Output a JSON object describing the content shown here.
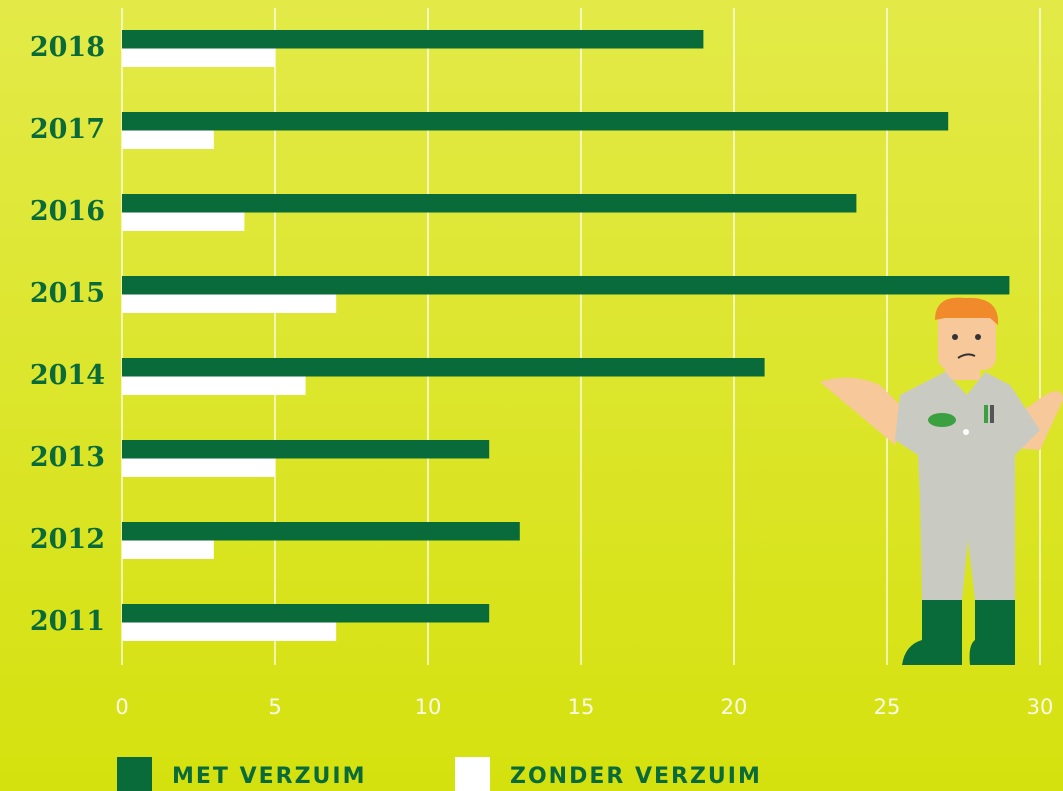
{
  "chart_data": {
    "type": "hbar",
    "categories": [
      "2018",
      "2017",
      "2016",
      "2015",
      "2014",
      "2013",
      "2012",
      "2011"
    ],
    "series": [
      {
        "name": "MET VERZUIM",
        "color": "#0a6b3a",
        "values": [
          19,
          27,
          24,
          29,
          21,
          12,
          13,
          12
        ]
      },
      {
        "name": "ZONDER VERZUIM",
        "color": "#ffffff",
        "values": [
          5,
          3,
          4,
          7,
          6,
          5,
          3,
          7
        ]
      }
    ],
    "xlim": [
      0,
      30
    ],
    "xticks": [
      0,
      5,
      10,
      15,
      20,
      25,
      30
    ],
    "grid": true
  }
}
